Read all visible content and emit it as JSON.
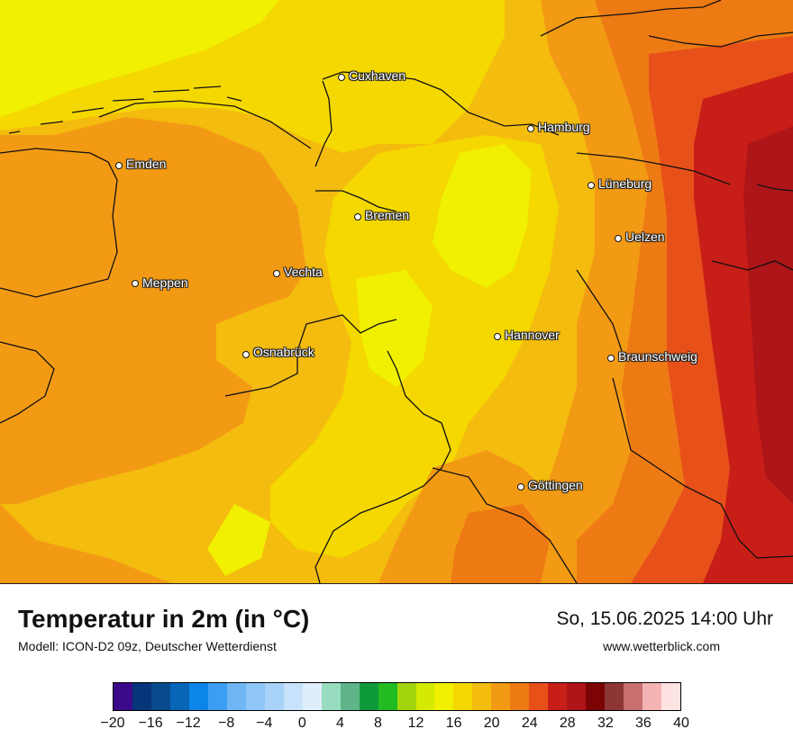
{
  "map": {
    "region": "Niedersachsen",
    "cities": [
      {
        "name": "Cuxhaven",
        "id": "cuxhaven"
      },
      {
        "name": "Hamburg",
        "id": "hamburg"
      },
      {
        "name": "Emden",
        "id": "emden"
      },
      {
        "name": "Lüneburg",
        "id": "lueneburg"
      },
      {
        "name": "Bremen",
        "id": "bremen"
      },
      {
        "name": "Uelzen",
        "id": "uelzen"
      },
      {
        "name": "Vechta",
        "id": "vechta"
      },
      {
        "name": "Meppen",
        "id": "meppen"
      },
      {
        "name": "Hannover",
        "id": "hannover"
      },
      {
        "name": "Osnabrück",
        "id": "osnabrueck"
      },
      {
        "name": "Braunschweig",
        "id": "braunschweig"
      },
      {
        "name": "Göttingen",
        "id": "goettingen"
      }
    ],
    "colors": {
      "t16": "#f0f000",
      "t18": "#f4d800",
      "t20": "#f4bc0e",
      "t22": "#f39a14",
      "t24": "#ee7a14",
      "t26": "#e8501a",
      "t28": "#c81e18",
      "t30": "#ae1518",
      "border": "#111111"
    }
  },
  "header": {
    "title": "Temperatur in 2m (in °C)",
    "subtitle": "Modell: ICON-D2 09z, Deutscher Wetterdienst",
    "datetime": "So, 15.06.2025 14:00 Uhr",
    "website": "www.wetterblick.com"
  },
  "legend": {
    "ticks": [
      "−20",
      "−16",
      "−12",
      "−8",
      "−4",
      "0",
      "4",
      "8",
      "12",
      "16",
      "20",
      "24",
      "28",
      "32",
      "36",
      "40"
    ],
    "colors": [
      "#3b0a8a",
      "#06357a",
      "#084a8e",
      "#0766b8",
      "#0b86e8",
      "#3a9ef2",
      "#6fb6f5",
      "#8ec6f7",
      "#a8d2f8",
      "#c9e2fb",
      "#dfeefc",
      "#98dcc0",
      "#5fb48a",
      "#0e9a3a",
      "#22bb22",
      "#a2d40c",
      "#d4ea00",
      "#f0f000",
      "#f4d800",
      "#f4bc0e",
      "#f39a14",
      "#ee7a14",
      "#e8501a",
      "#c81e18",
      "#ae1518",
      "#7c0404",
      "#8c3636",
      "#c87070",
      "#f4b4b4",
      "#fde2e2"
    ]
  }
}
